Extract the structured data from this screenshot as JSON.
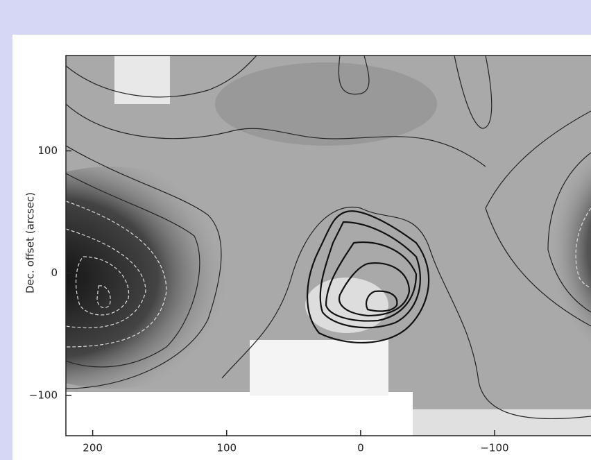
{
  "chart_data": {
    "type": "map",
    "ylabel": "Dec. offset (arcsec)",
    "xlim": [
      220,
      -172
    ],
    "ylim": [
      -133,
      178
    ],
    "xticks": [
      200,
      100,
      0,
      {
        "value": -100,
        "label": "−100"
      }
    ],
    "yticks": [
      100,
      0,
      {
        "value": -100,
        "label": "−100"
      }
    ]
  }
}
